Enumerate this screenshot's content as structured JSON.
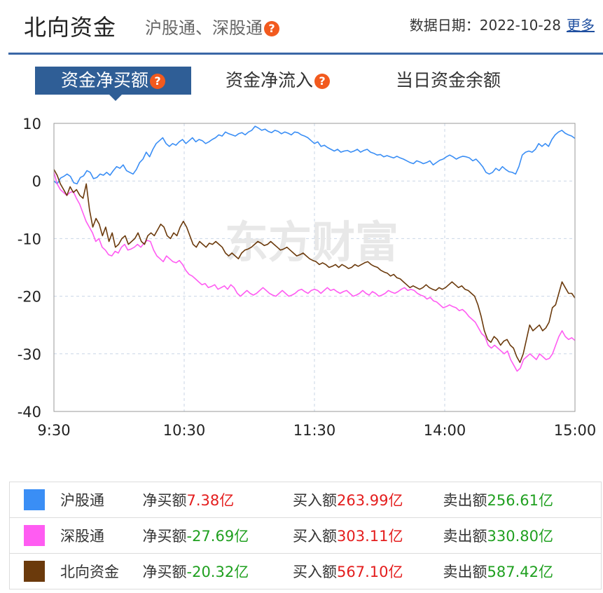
{
  "header": {
    "title": "北向资金",
    "subtitle": "沪股通、深股通",
    "help_icon": "question-icon",
    "date_label": "数据日期：",
    "date_value": "2022-10-28",
    "more_link": "更多"
  },
  "tabs": [
    {
      "label": "资金净买额",
      "active": true,
      "has_help": true
    },
    {
      "label": "资金净流入",
      "active": false,
      "has_help": true
    },
    {
      "label": "当日资金余额",
      "active": false,
      "has_help": false
    }
  ],
  "watermark": "东方财富",
  "colors": {
    "sh": "#3a8ef5",
    "sz": "#ff5cf2",
    "north": "#6b3a0c",
    "accent": "#2f5e96",
    "up": "#e41d1d",
    "down": "#20a020"
  },
  "chart_data": {
    "type": "line",
    "x_ticks": [
      "9:30",
      "10:30",
      "11:30",
      "14:00",
      "15:00"
    ],
    "y_ticks": [
      "10",
      "0",
      "-10",
      "-20",
      "-30",
      "-40"
    ],
    "ylim": [
      -40,
      10
    ],
    "series": [
      {
        "name": "沪股通",
        "color_key": "sh",
        "values": [
          0.0,
          -0.5,
          0.5,
          0.8,
          1.2,
          0.8,
          -0.3,
          -0.5,
          0.6,
          0.9,
          1.8,
          1.5,
          0.4,
          0.6,
          1.2,
          1.0,
          1.5,
          1.0,
          1.8,
          2.5,
          2.2,
          2.8,
          1.8,
          1.5,
          1.2,
          2.0,
          3.2,
          3.8,
          5.0,
          4.2,
          5.5,
          6.5,
          7.0,
          7.5,
          6.5,
          6.0,
          6.5,
          6.2,
          6.8,
          7.2,
          6.5,
          7.0,
          7.5,
          6.8,
          7.2,
          7.0,
          6.5,
          6.8,
          7.2,
          7.5,
          8.0,
          7.8,
          8.5,
          8.2,
          8.0,
          7.8,
          8.2,
          8.4,
          8.0,
          8.5,
          8.8,
          9.5,
          9.2,
          8.8,
          9.0,
          8.6,
          8.4,
          8.8,
          8.6,
          8.2,
          8.5,
          8.3,
          8.0,
          8.5,
          8.4,
          8.0,
          7.8,
          7.5,
          7.0,
          6.5,
          6.8,
          6.0,
          6.2,
          5.8,
          5.5,
          5.2,
          5.5,
          5.0,
          5.2,
          5.3,
          5.0,
          5.2,
          5.5,
          5.0,
          5.3,
          5.5,
          5.0,
          4.8,
          4.5,
          4.6,
          4.2,
          4.4,
          4.2,
          4.0,
          4.3,
          4.0,
          3.8,
          3.5,
          3.2,
          3.0,
          3.5,
          3.3,
          3.0,
          3.2,
          3.5,
          2.8,
          3.2,
          3.6,
          3.8,
          4.2,
          4.5,
          4.2,
          3.8,
          4.1,
          4.3,
          4.2,
          4.0,
          3.5,
          3.8,
          3.2,
          2.5,
          1.5,
          1.2,
          1.5,
          2.2,
          1.8,
          2.5,
          2.0,
          1.6,
          1.5,
          1.2,
          2.5,
          4.5,
          5.0,
          5.2,
          5.0,
          5.5,
          6.5,
          6.0,
          6.5,
          6.0,
          7.2,
          8.0,
          8.5,
          8.8,
          8.3,
          8.0,
          7.8,
          7.38
        ]
      },
      {
        "name": "深股通",
        "color_key": "sz",
        "values": [
          1.5,
          -0.5,
          -1.5,
          -2.0,
          -2.5,
          -2.0,
          -1.8,
          -3.0,
          -4.0,
          -5.5,
          -7.0,
          -8.0,
          -9.0,
          -10.5,
          -10.0,
          -11.5,
          -12.0,
          -12.8,
          -13.0,
          -12.2,
          -12.5,
          -11.5,
          -11.0,
          -12.0,
          -11.8,
          -11.5,
          -11.0,
          -11.5,
          -10.8,
          -10.3,
          -10.5,
          -12.0,
          -13.0,
          -13.5,
          -14.0,
          -13.0,
          -13.5,
          -14.0,
          -14.2,
          -13.8,
          -14.5,
          -15.5,
          -16.2,
          -16.5,
          -17.0,
          -17.5,
          -18.0,
          -17.8,
          -18.5,
          -18.3,
          -18.0,
          -18.8,
          -18.5,
          -18.2,
          -18.8,
          -18.0,
          -18.5,
          -19.5,
          -20.0,
          -19.5,
          -19.0,
          -19.5,
          -19.8,
          -19.5,
          -19.0,
          -18.5,
          -19.0,
          -19.5,
          -19.8,
          -20.0,
          -19.5,
          -19.0,
          -19.5,
          -20.0,
          -19.8,
          -19.5,
          -19.0,
          -18.8,
          -19.2,
          -19.5,
          -19.0,
          -18.8,
          -19.0,
          -19.5,
          -19.0,
          -18.5,
          -19.0,
          -18.8,
          -19.2,
          -19.5,
          -19.2,
          -19.0,
          -19.5,
          -20.0,
          -19.8,
          -19.5,
          -19.0,
          -19.5,
          -19.8,
          -19.2,
          -19.5,
          -20.0,
          -19.8,
          -19.5,
          -19.0,
          -19.3,
          -19.5,
          -19.2,
          -18.8,
          -18.5,
          -19.0,
          -18.8,
          -19.0,
          -19.5,
          -19.8,
          -20.0,
          -20.5,
          -20.2,
          -20.8,
          -21.0,
          -21.5,
          -22.0,
          -21.8,
          -21.5,
          -21.8,
          -22.0,
          -22.5,
          -22.3,
          -22.8,
          -23.5,
          -24.0,
          -24.5,
          -25.5,
          -26.5,
          -27.0,
          -28.5,
          -29.0,
          -28.5,
          -29.0,
          -29.5,
          -30.0,
          -29.5,
          -31.0,
          -32.0,
          -33.0,
          -32.5,
          -31.0,
          -30.5,
          -30.0,
          -30.5,
          -31.0,
          -30.0,
          -30.5,
          -31.0,
          -30.8,
          -30.0,
          -28.5,
          -27.0,
          -26.0,
          -27.0,
          -27.5,
          -27.2,
          -27.69
        ]
      },
      {
        "name": "北向资金",
        "color_key": "north",
        "values": [
          2.0,
          1.0,
          -0.5,
          -1.5,
          -2.5,
          -1.0,
          -2.0,
          -1.5,
          -2.5,
          -3.0,
          -0.5,
          -5.0,
          -8.0,
          -6.5,
          -7.5,
          -9.5,
          -8.0,
          -10.5,
          -9.0,
          -11.5,
          -11.0,
          -10.0,
          -9.5,
          -11.0,
          -10.5,
          -10.0,
          -9.0,
          -10.5,
          -11.0,
          -9.5,
          -9.0,
          -9.5,
          -8.5,
          -7.5,
          -8.0,
          -9.5,
          -10.0,
          -9.0,
          -9.5,
          -8.0,
          -7.0,
          -8.0,
          -9.5,
          -11.0,
          -11.5,
          -10.5,
          -11.0,
          -11.5,
          -10.8,
          -11.0,
          -10.5,
          -11.0,
          -11.5,
          -12.5,
          -13.0,
          -12.5,
          -13.0,
          -13.5,
          -12.5,
          -12.0,
          -11.8,
          -11.5,
          -11.0,
          -10.5,
          -10.8,
          -11.2,
          -11.0,
          -10.5,
          -11.0,
          -11.5,
          -12.0,
          -11.8,
          -11.5,
          -12.0,
          -12.5,
          -13.0,
          -12.8,
          -12.5,
          -13.0,
          -13.5,
          -13.8,
          -14.0,
          -14.5,
          -14.2,
          -14.5,
          -15.0,
          -14.8,
          -14.5,
          -15.0,
          -14.5,
          -14.8,
          -15.2,
          -15.0,
          -14.5,
          -14.8,
          -14.5,
          -14.2,
          -14.0,
          -14.5,
          -14.8,
          -15.0,
          -15.5,
          -15.8,
          -16.0,
          -16.5,
          -16.2,
          -16.8,
          -17.0,
          -17.5,
          -18.0,
          -18.5,
          -18.2,
          -18.5,
          -18.8,
          -18.5,
          -18.0,
          -18.5,
          -18.8,
          -19.0,
          -18.5,
          -18.8,
          -18.5,
          -18.0,
          -17.5,
          -18.0,
          -18.5,
          -18.2,
          -18.8,
          -19.0,
          -19.5,
          -20.0,
          -21.5,
          -23.5,
          -26.0,
          -27.5,
          -28.0,
          -27.0,
          -27.5,
          -28.5,
          -27.8,
          -27.5,
          -28.5,
          -29.0,
          -30.5,
          -31.5,
          -30.0,
          -27.5,
          -25.0,
          -26.0,
          -25.5,
          -25.0,
          -26.0,
          -25.5,
          -24.5,
          -22.0,
          -21.5,
          -19.5,
          -17.5,
          -18.5,
          -19.5,
          -19.5,
          -20.32
        ]
      }
    ]
  },
  "legend": [
    {
      "name": "沪股通",
      "color_key": "sh",
      "net_label": "净买额",
      "net_value": "7.38亿",
      "net_sign": "up",
      "buy_label": "买入额",
      "buy_value": "263.99亿",
      "sell_label": "卖出额",
      "sell_value": "256.61亿"
    },
    {
      "name": "深股通",
      "color_key": "sz",
      "net_label": "净买额",
      "net_value": "-27.69亿",
      "net_sign": "down",
      "buy_label": "买入额",
      "buy_value": "303.11亿",
      "sell_label": "卖出额",
      "sell_value": "330.80亿"
    },
    {
      "name": "北向资金",
      "color_key": "north",
      "net_label": "净买额",
      "net_value": "-20.32亿",
      "net_sign": "down",
      "buy_label": "买入额",
      "buy_value": "567.10亿",
      "sell_label": "卖出额",
      "sell_value": "587.42亿"
    }
  ]
}
